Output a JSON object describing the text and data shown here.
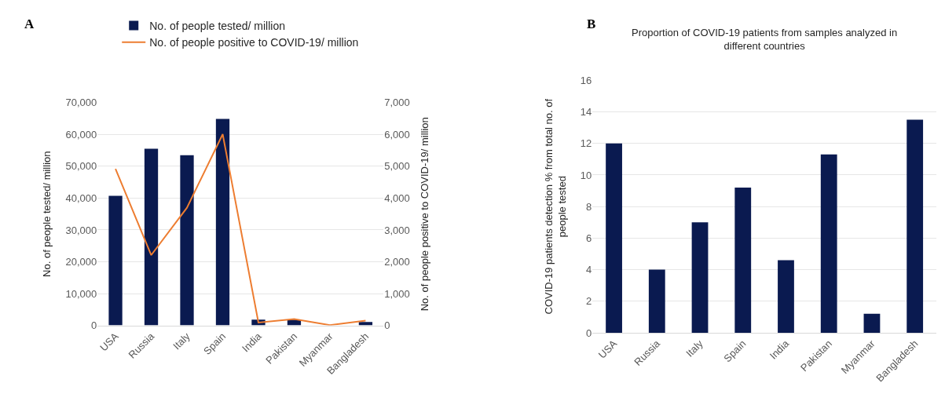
{
  "chart_data": [
    {
      "type": "bar",
      "categories": [
        "USA",
        "Russia",
        "Italy",
        "Spain",
        "India",
        "Pakistan",
        "Myanmar",
        "Bangladesh"
      ],
      "series": [
        {
          "name": "No. of people tested/ million",
          "color": "#0a1a50",
          "values": [
            40700,
            55500,
            53500,
            64900,
            1800,
            1800,
            null,
            1100
          ]
        },
        {
          "name": "No. of people positive to COVID-19/ million",
          "color": "#ed7d31",
          "type": "line",
          "axis": "y2",
          "values": [
            4920,
            2210,
            3700,
            6010,
            90,
            200,
            10,
            150
          ]
        }
      ],
      "ylabel": "No. of people tested/ million",
      "y2label": "No. of people positive to COVID-19/ million",
      "ylim": [
        0,
        70000
      ],
      "yticks": [
        0,
        {
          "value": 10000,
          "label": "10,000"
        },
        {
          "value": 20000,
          "label": "20,000"
        },
        {
          "value": 30000,
          "label": "30,000"
        },
        {
          "value": 40000,
          "label": "40,000"
        },
        {
          "value": 50000,
          "label": "50,000"
        },
        {
          "value": 60000,
          "label": "60,000"
        },
        {
          "value": 70000,
          "label": "70,000"
        }
      ],
      "y2lim": [
        0,
        7000
      ],
      "y2ticks": [
        0,
        {
          "value": 1000,
          "label": "1,000"
        },
        {
          "value": 2000,
          "label": "2,000"
        },
        {
          "value": 3000,
          "label": "3,000"
        },
        {
          "value": 4000,
          "label": "4,000"
        },
        {
          "value": 5000,
          "label": "5,000"
        },
        {
          "value": 6000,
          "label": "6,000"
        },
        {
          "value": 7000,
          "label": "7,000"
        }
      ],
      "grid": "y",
      "legend": "top",
      "annotations": [
        "A"
      ]
    },
    {
      "type": "bar",
      "title": "Proportion of COVID-19 patients from samples analyzed in different countries",
      "categories": [
        "USA",
        "Russia",
        "Italy",
        "Spain",
        "India",
        "Pakistan",
        "Myanmar",
        "Bangladesh"
      ],
      "values": [
        12,
        4,
        7,
        9.2,
        4.6,
        11.3,
        1.2,
        13.5
      ],
      "color": "#0a1a50",
      "ylabel": "COVID-19 patients detection % from total no. of people tested",
      "ylim": [
        0,
        16
      ],
      "yticks": [
        0,
        2,
        4,
        6,
        8,
        10,
        12,
        14,
        16
      ],
      "grid": "y",
      "annotations": [
        "B"
      ]
    }
  ]
}
